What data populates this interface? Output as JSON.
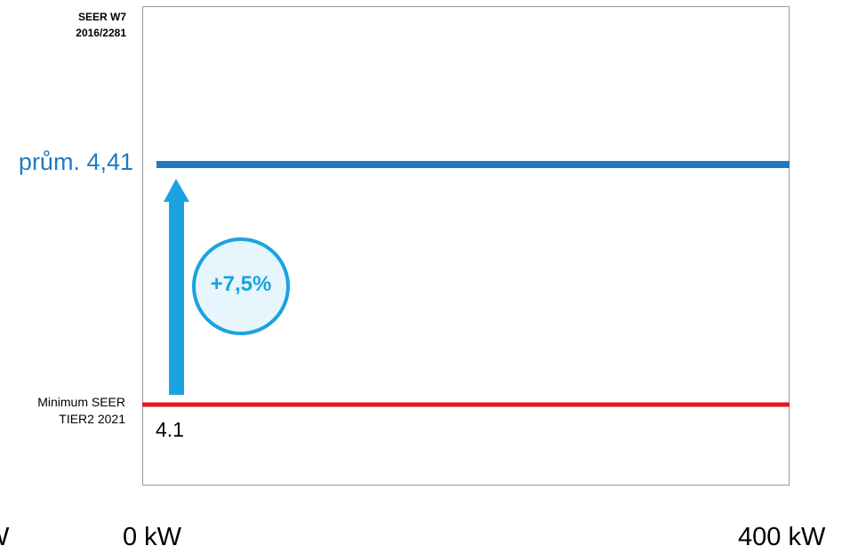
{
  "chart_data": {
    "type": "line",
    "title_lines": [
      "SEER W7",
      "2016/2281"
    ],
    "x_ticks": [
      "0 kW",
      "400 kW"
    ],
    "x_tick_left_cut": "W",
    "series": [
      {
        "name": "prům. 4,41",
        "x": [
          0,
          400
        ],
        "values": [
          4.41,
          4.41
        ],
        "color": "#1e7ac5"
      },
      {
        "name": "Minimum SEER TIER2 2021",
        "x": [
          0,
          400
        ],
        "values": [
          4.1,
          4.1
        ],
        "color": "#e8171b"
      }
    ],
    "xlim": [
      0,
      400
    ],
    "annotations": {
      "avg_label": "prům. 4,41",
      "min_label_lines": [
        "Minimum SEER",
        "TIER2 2021"
      ],
      "min_value_label": "4.1",
      "increase_badge": "+7,5%"
    },
    "colors": {
      "average_line": "#1e7ac5",
      "minimum_line": "#e8171b",
      "arrow": "#1aa3e0",
      "badge_fill": "#e6f6fc"
    }
  }
}
